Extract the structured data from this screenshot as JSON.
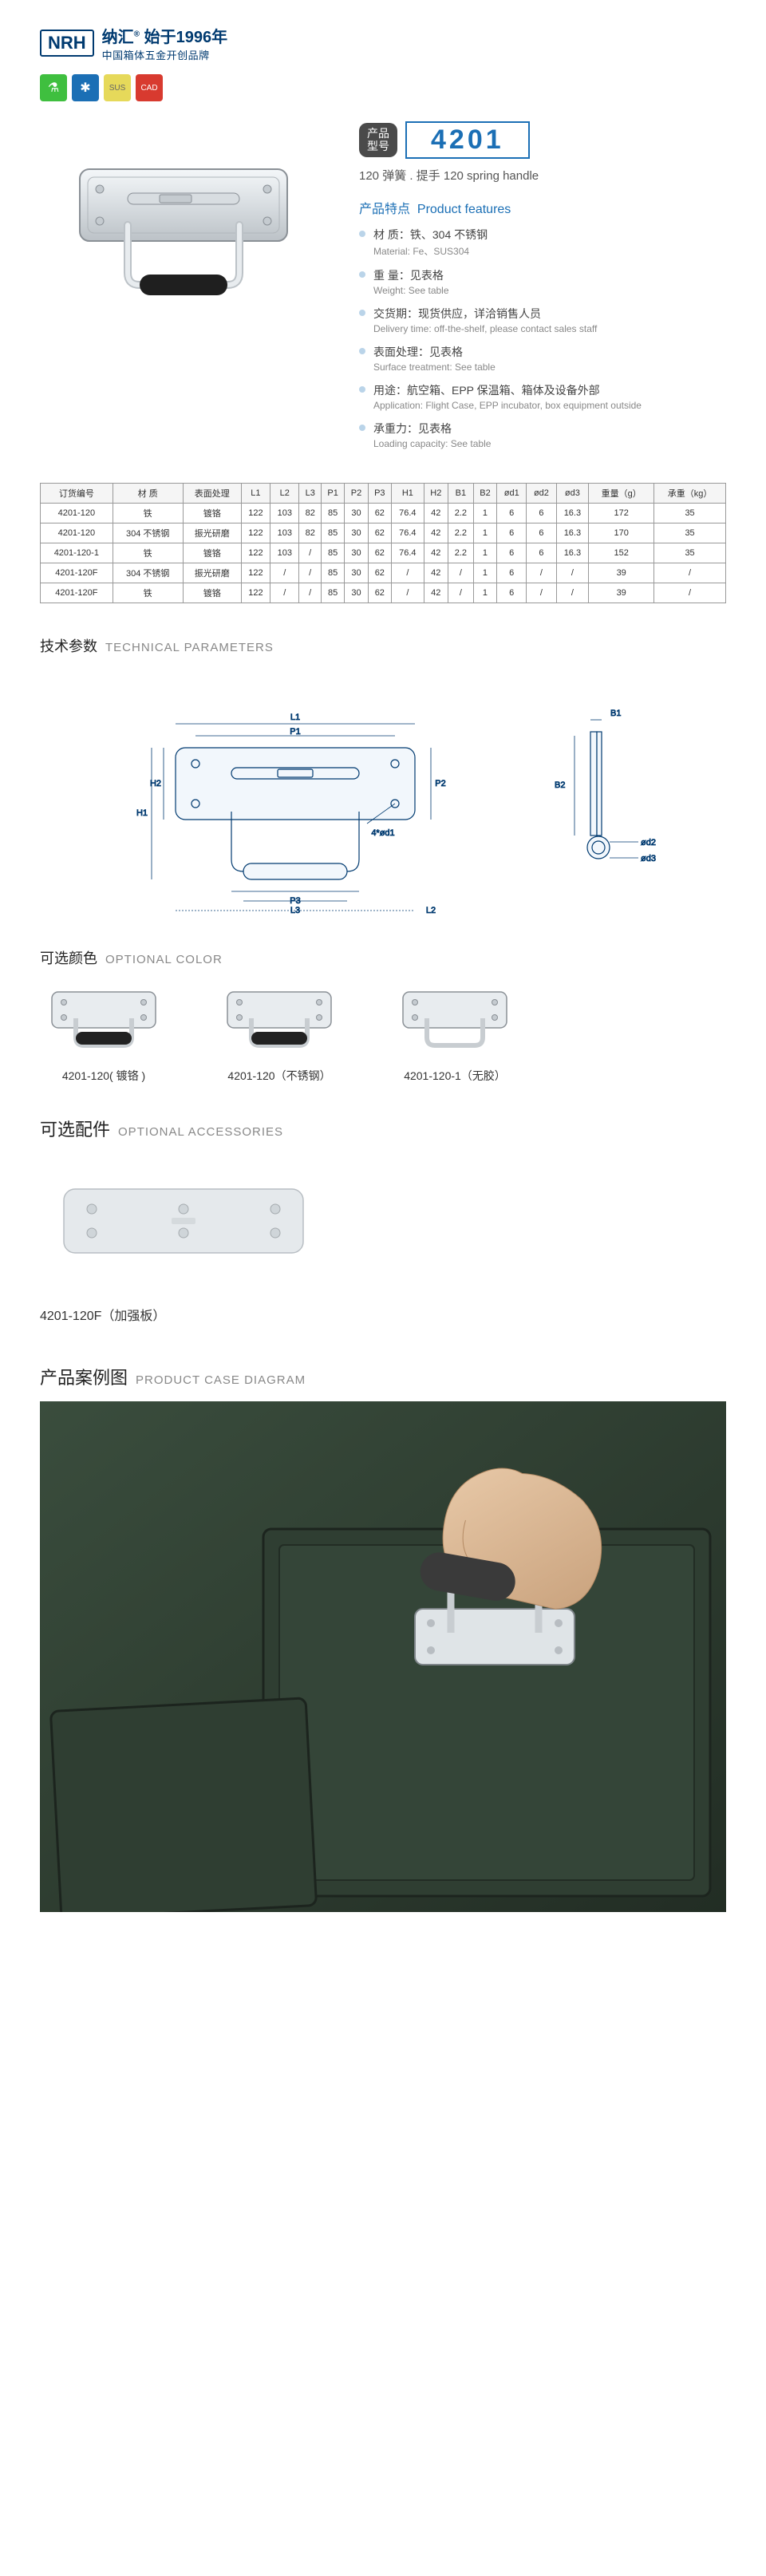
{
  "brand": {
    "logo": "NRH",
    "name_cn": "纳汇",
    "since": "始于1996年",
    "tagline": "中国箱体五金开创品牌"
  },
  "tags": {
    "green_icon": "⚗",
    "blue_icon": "✱",
    "yellow_text": "SUS",
    "red_text": "CAD"
  },
  "product": {
    "model_label": "产品\n型号",
    "model_number": "4201",
    "subtitle": "120 弹簧 . 提手   120 spring handle"
  },
  "features": {
    "heading_cn": "产品特点",
    "heading_en": "Product features",
    "items": [
      {
        "cn": "材 质：铁、304 不锈钢",
        "en": "Material: Fe、SUS304"
      },
      {
        "cn": "重 量：见表格",
        "en": "Weight: See table"
      },
      {
        "cn": "交货期：现货供应，详洽销售人员",
        "en": "Delivery time: off-the-shelf, please contact sales staff"
      },
      {
        "cn": "表面处理：见表格",
        "en": "Surface treatment: See table"
      },
      {
        "cn": "用途：航空箱、EPP 保温箱、箱体及设备外部",
        "en": "Application: Flight Case, EPP incubator, box equipment outside"
      },
      {
        "cn": "承重力：见表格",
        "en": "Loading capacity: See table"
      }
    ]
  },
  "spec_table": {
    "headers": [
      "订货编号",
      "材 质",
      "表面处理",
      "L1",
      "L2",
      "L3",
      "P1",
      "P2",
      "P3",
      "H1",
      "H2",
      "B1",
      "B2",
      "ød1",
      "ød2",
      "ød3",
      "重量（g）",
      "承重（kg）"
    ],
    "rows": [
      [
        "4201-120",
        "铁",
        "镀铬",
        "122",
        "103",
        "82",
        "85",
        "30",
        "62",
        "76.4",
        "42",
        "2.2",
        "1",
        "6",
        "6",
        "16.3",
        "172",
        "35"
      ],
      [
        "4201-120",
        "304 不锈钢",
        "振光研磨",
        "122",
        "103",
        "82",
        "85",
        "30",
        "62",
        "76.4",
        "42",
        "2.2",
        "1",
        "6",
        "6",
        "16.3",
        "170",
        "35"
      ],
      [
        "4201-120-1",
        "铁",
        "镀铬",
        "122",
        "103",
        "/",
        "85",
        "30",
        "62",
        "76.4",
        "42",
        "2.2",
        "1",
        "6",
        "6",
        "16.3",
        "152",
        "35"
      ],
      [
        "4201-120F",
        "304 不锈钢",
        "振光研磨",
        "122",
        "/",
        "/",
        "85",
        "30",
        "62",
        "/",
        "42",
        "/",
        "1",
        "6",
        "/",
        "/",
        "39",
        "/"
      ],
      [
        "4201-120F",
        "铁",
        "镀铬",
        "122",
        "/",
        "/",
        "85",
        "30",
        "62",
        "/",
        "42",
        "/",
        "1",
        "6",
        "/",
        "/",
        "39",
        "/"
      ]
    ]
  },
  "sections": {
    "tech_params": {
      "cn": "技术参数",
      "en": "TECHNICAL PARAMETERS"
    },
    "optional_color": {
      "cn": "可选颜色",
      "en": "OPTIONAL COLOR"
    },
    "optional_accessories": {
      "cn": "可选配件",
      "en": "OPTIONAL ACCESSORIES"
    },
    "case_diagram": {
      "cn": "产品案例图",
      "en": "PRODUCT CASE DIAGRAM"
    }
  },
  "tech_labels": [
    "L1",
    "P1",
    "P2",
    "H1",
    "H2",
    "P3",
    "L3",
    "L2",
    "4*ød1",
    "B1",
    "B2",
    "ød2",
    "ød3"
  ],
  "colors": [
    {
      "label": "4201-120( 镀铬 )",
      "grip": "#222"
    },
    {
      "label": "4201-120（不锈钢）",
      "grip": "#222"
    },
    {
      "label": "4201-120-1（无胶）",
      "grip": "none"
    }
  ],
  "accessory": {
    "label": "4201-120F（加强板）"
  },
  "svg_colors": {
    "metal_light": "#e8ecef",
    "metal_mid": "#c5cbd0",
    "metal_dark": "#9aa0a5",
    "outline": "#6b7075",
    "hole": "#b8bdc2",
    "grip_black": "#1f1f1f",
    "tech_line": "#003a70",
    "tech_fill": "#e8f0f8"
  }
}
